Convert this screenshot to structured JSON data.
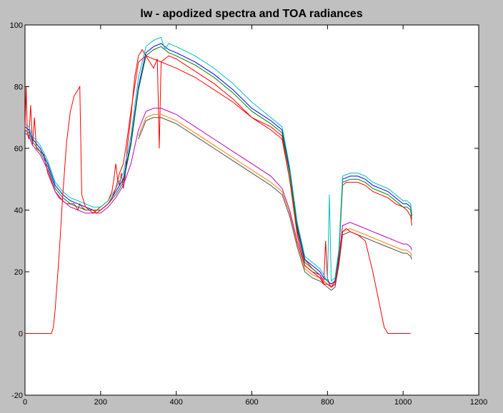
{
  "chart_data": {
    "type": "line",
    "title": "lw - apodized spectra and TOA radiances",
    "xlabel": "",
    "ylabel": "",
    "xlim": [
      0,
      1200
    ],
    "ylim": [
      -20,
      100
    ],
    "xticks": [
      0,
      200,
      400,
      600,
      800,
      1000,
      1200
    ],
    "yticks": [
      -20,
      0,
      20,
      40,
      60,
      80,
      100
    ],
    "grid": false,
    "legend": "none",
    "series": [
      {
        "color": "#ff0000",
        "style": "solid",
        "x": [
          0,
          3,
          6,
          10,
          15,
          20,
          25,
          30,
          40,
          50,
          60,
          70,
          80,
          90,
          100,
          110,
          120,
          130,
          140,
          145,
          150,
          160,
          170,
          180,
          190,
          200,
          210,
          220,
          230,
          235,
          240,
          245,
          250,
          255,
          260,
          265,
          270,
          280,
          290,
          300,
          310,
          320,
          330,
          340,
          350,
          355,
          360,
          370,
          380,
          400,
          450,
          500,
          550,
          600,
          650,
          680,
          700,
          720,
          740,
          760,
          770,
          780,
          790,
          795,
          800,
          805,
          810,
          820,
          830,
          840,
          850,
          860,
          880,
          900,
          920,
          940,
          960,
          980,
          1000,
          1010,
          1020,
          1023
        ],
        "y": [
          66,
          80,
          65,
          63,
          74,
          61,
          70,
          60,
          59,
          58,
          52,
          49,
          46,
          44,
          43,
          42,
          42,
          42,
          40,
          42,
          41,
          40,
          40,
          39,
          40,
          41,
          42,
          43,
          46,
          50,
          55,
          50,
          48,
          52,
          47,
          51,
          60,
          70,
          83,
          90,
          92,
          90,
          88,
          86,
          89,
          60,
          88,
          89,
          90,
          89,
          85,
          81,
          76,
          70,
          67,
          64,
          50,
          33,
          24,
          21,
          20,
          19,
          16,
          30,
          18,
          16,
          15,
          17,
          25,
          48,
          49,
          49,
          49,
          48,
          46,
          45,
          44,
          42,
          41,
          40,
          38,
          35
        ]
      },
      {
        "color": "#0000ff",
        "style": "solid",
        "x": [
          0,
          10,
          20,
          40,
          60,
          80,
          100,
          120,
          140,
          160,
          180,
          200,
          220,
          240,
          260,
          280,
          300,
          320,
          340,
          360,
          380,
          400,
          450,
          500,
          550,
          600,
          650,
          680,
          700,
          720,
          740,
          760,
          780,
          790,
          800,
          810,
          820,
          830,
          840,
          860,
          880,
          900,
          920,
          940,
          960,
          980,
          1000,
          1010,
          1020,
          1023
        ],
        "y": [
          67,
          66,
          63,
          60,
          55,
          48,
          45,
          43,
          42,
          41,
          40,
          40,
          42,
          46,
          50,
          62,
          80,
          91,
          93,
          94,
          92,
          91,
          88,
          84,
          79,
          73,
          69,
          66,
          53,
          35,
          24,
          22,
          20,
          18,
          17,
          16,
          17,
          26,
          50,
          51,
          51,
          50,
          48,
          47,
          46,
          44,
          42,
          42,
          41,
          38
        ]
      },
      {
        "color": "#007f00",
        "style": "solid",
        "x": [
          0,
          10,
          20,
          40,
          60,
          80,
          100,
          120,
          140,
          160,
          180,
          200,
          220,
          240,
          260,
          280,
          300,
          320,
          340,
          360,
          380,
          400,
          450,
          500,
          550,
          600,
          650,
          680,
          700,
          720,
          740,
          760,
          780,
          790,
          800,
          810,
          820,
          830,
          840,
          860,
          880,
          900,
          920,
          940,
          960,
          980,
          1000,
          1010,
          1020,
          1023
        ],
        "y": [
          66,
          65,
          62,
          59,
          54,
          47,
          44,
          42,
          41,
          40,
          40,
          40,
          42,
          45,
          49,
          61,
          79,
          90,
          92,
          93,
          91,
          90,
          87,
          83,
          78,
          72,
          68,
          65,
          52,
          34,
          23,
          21,
          19,
          17,
          16,
          15,
          16,
          25,
          49,
          50,
          50,
          49,
          47,
          46,
          45,
          43,
          41,
          41,
          40,
          37
        ]
      },
      {
        "color": "#00bfbf",
        "style": "solid",
        "x": [
          0,
          10,
          20,
          40,
          60,
          80,
          100,
          120,
          140,
          160,
          180,
          200,
          220,
          240,
          260,
          280,
          300,
          320,
          340,
          360,
          370,
          380,
          400,
          450,
          500,
          550,
          600,
          650,
          680,
          700,
          720,
          740,
          760,
          780,
          790,
          800,
          805,
          810,
          820,
          830,
          840,
          860,
          880,
          900,
          920,
          940,
          960,
          980,
          1000,
          1010,
          1020,
          1023
        ],
        "y": [
          68,
          67,
          64,
          61,
          56,
          49,
          46,
          44,
          43,
          42,
          41,
          41,
          43,
          47,
          52,
          64,
          83,
          93,
          95,
          96,
          92,
          94,
          93,
          90,
          86,
          81,
          75,
          70,
          67,
          54,
          36,
          25,
          23,
          21,
          19,
          17,
          45,
          17,
          18,
          27,
          51,
          52,
          52,
          51,
          49,
          48,
          47,
          45,
          43,
          43,
          42,
          39
        ]
      },
      {
        "color": "#bf00bf",
        "style": "solid",
        "x": [
          0,
          10,
          20,
          40,
          60,
          80,
          100,
          120,
          140,
          160,
          180,
          200,
          220,
          240,
          260,
          280,
          300,
          320,
          340,
          360,
          380,
          400,
          450,
          500,
          550,
          600,
          650,
          680,
          700,
          720,
          740,
          760,
          780,
          790,
          800,
          810,
          820,
          830,
          840,
          860,
          880,
          900,
          920,
          940,
          960,
          980,
          1000,
          1010,
          1020,
          1023
        ],
        "y": [
          65,
          64,
          61,
          58,
          53,
          46,
          43,
          41,
          40,
          39,
          39,
          39,
          41,
          44,
          48,
          55,
          66,
          72,
          73,
          73,
          72,
          71,
          67,
          63,
          59,
          55,
          51,
          47,
          40,
          30,
          22,
          20,
          19,
          17,
          16,
          15,
          16,
          24,
          35,
          36,
          35,
          34,
          33,
          32,
          31,
          30,
          29,
          29,
          28,
          27
        ]
      },
      {
        "color": "#ff7f00",
        "style": "solid",
        "x": [
          300,
          320,
          340,
          360,
          380,
          400,
          450,
          500,
          550,
          600,
          650,
          680,
          700,
          720,
          740,
          760,
          780,
          790,
          800,
          810,
          820,
          830,
          840,
          860,
          880,
          900,
          920,
          940,
          960,
          980,
          1000,
          1010,
          1020,
          1023
        ],
        "y": [
          64,
          70,
          71,
          71,
          70,
          69,
          65,
          61,
          57,
          53,
          49,
          46,
          39,
          29,
          21,
          19,
          18,
          17,
          16,
          15,
          16,
          23,
          33,
          34,
          33,
          32,
          31,
          30,
          29,
          28,
          27,
          27,
          26,
          25
        ]
      },
      {
        "color": "#4f4f4f",
        "style": "solid",
        "x": [
          300,
          320,
          340,
          360,
          380,
          400,
          450,
          500,
          550,
          600,
          650,
          680,
          700,
          720,
          740,
          760,
          780,
          790,
          800,
          810,
          820,
          830,
          840,
          860,
          880,
          900,
          920,
          940,
          960,
          980,
          1000,
          1010,
          1020,
          1023
        ],
        "y": [
          63,
          69,
          70,
          70,
          69,
          68,
          64,
          60,
          56,
          52,
          48,
          45,
          38,
          28,
          20,
          18,
          17,
          16,
          15,
          14,
          15,
          22,
          32,
          33,
          32,
          31,
          30,
          29,
          28,
          27,
          26,
          26,
          25,
          24
        ]
      },
      {
        "color": "#ff0000",
        "style": "solid",
        "x": [
          0,
          60,
          70,
          75,
          80,
          90,
          100,
          110,
          120,
          130,
          140,
          145,
          150,
          160,
          170,
          180,
          190,
          200,
          210,
          220,
          230,
          240,
          250,
          260,
          270,
          280,
          290,
          300,
          320,
          340,
          360,
          380,
          400,
          450,
          500,
          550,
          600,
          650,
          680,
          700,
          720,
          740,
          760,
          780,
          790,
          800,
          810,
          820,
          830,
          840,
          850,
          860,
          880,
          900,
          920,
          940,
          950,
          960,
          970,
          1020
        ],
        "y": [
          0,
          0,
          0,
          2,
          8,
          25,
          45,
          62,
          72,
          77,
          79,
          80,
          45,
          41,
          40,
          40,
          39,
          40,
          41,
          42,
          44,
          47,
          52,
          55,
          63,
          72,
          80,
          88,
          90,
          89,
          88,
          87,
          86,
          83,
          79,
          75,
          70,
          66,
          63,
          50,
          32,
          22,
          20,
          18,
          16,
          16,
          15,
          16,
          23,
          33,
          34,
          33,
          32,
          30,
          20,
          8,
          2,
          0,
          0,
          0
        ]
      }
    ]
  }
}
